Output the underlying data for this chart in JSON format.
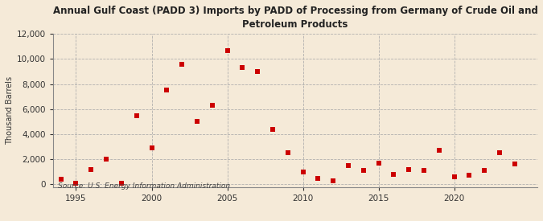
{
  "title": "Annual Gulf Coast (PADD 3) Imports by PADD of Processing from Germany of Crude Oil and\nPetroleum Products",
  "ylabel": "Thousand Barrels",
  "source": "Source: U.S. Energy Information Administration",
  "background_color": "#f5ead8",
  "plot_bg_color": "#f5ead8",
  "marker_color": "#cc0000",
  "marker": "s",
  "marker_size": 4,
  "xlim": [
    1993.5,
    2025.5
  ],
  "ylim": [
    -200,
    12000
  ],
  "yticks": [
    0,
    2000,
    4000,
    6000,
    8000,
    10000,
    12000
  ],
  "xticks": [
    1995,
    2000,
    2005,
    2010,
    2015,
    2020
  ],
  "data": [
    [
      1994,
      400
    ],
    [
      1995,
      100
    ],
    [
      1996,
      1200
    ],
    [
      1997,
      2000
    ],
    [
      1998,
      100
    ],
    [
      1999,
      5500
    ],
    [
      2000,
      2900
    ],
    [
      2001,
      7500
    ],
    [
      2002,
      9600
    ],
    [
      2003,
      5000
    ],
    [
      2004,
      6300
    ],
    [
      2005,
      10700
    ],
    [
      2006,
      9300
    ],
    [
      2007,
      9000
    ],
    [
      2008,
      4400
    ],
    [
      2009,
      2500
    ],
    [
      2010,
      1000
    ],
    [
      2011,
      500
    ],
    [
      2012,
      300
    ],
    [
      2013,
      1500
    ],
    [
      2014,
      1100
    ],
    [
      2015,
      1700
    ],
    [
      2016,
      800
    ],
    [
      2017,
      1200
    ],
    [
      2018,
      1100
    ],
    [
      2019,
      2700
    ],
    [
      2020,
      600
    ],
    [
      2021,
      700
    ],
    [
      2022,
      1100
    ],
    [
      2023,
      2500
    ],
    [
      2024,
      1600
    ]
  ]
}
